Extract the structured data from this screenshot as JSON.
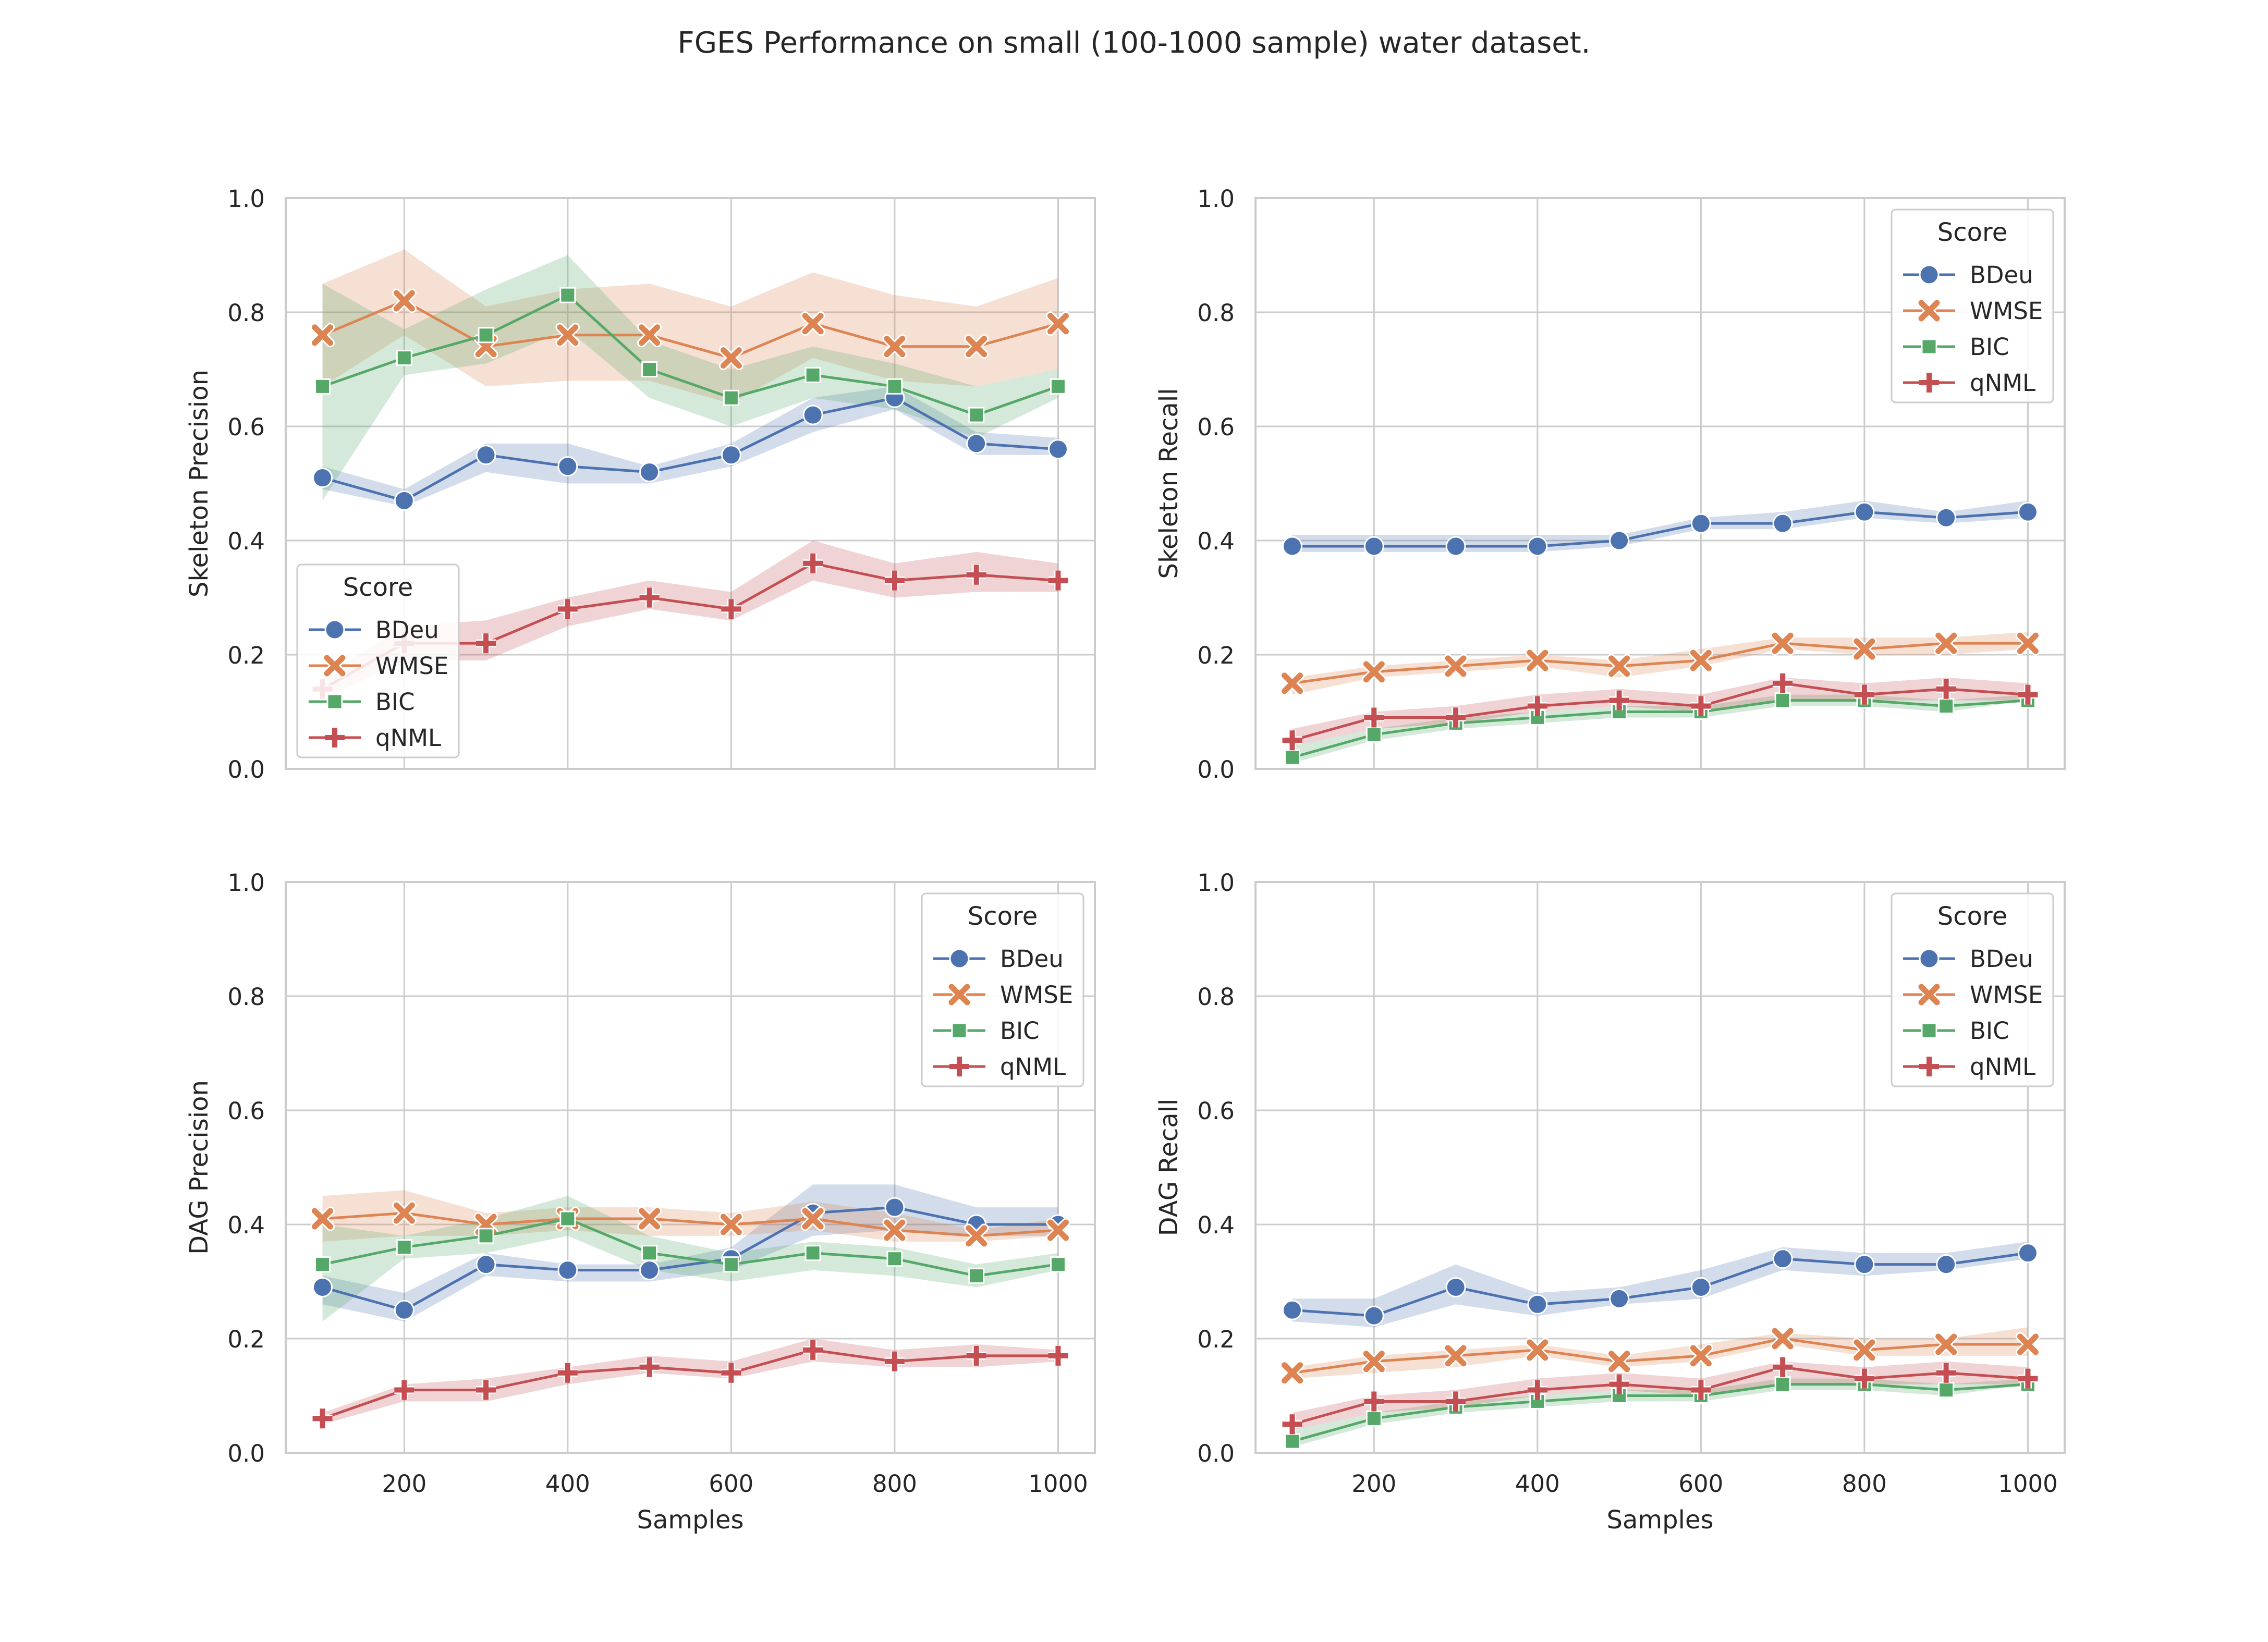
{
  "figure": {
    "title": "FGES Performance on small (100-1000 sample) water dataset."
  },
  "colors": {
    "BDeu": "#4c72b0",
    "WMSE": "#dd8452",
    "BIC": "#55a868",
    "qNML": "#c44e52",
    "grid": "#cccccc",
    "axes_bg": "#ffffff"
  },
  "chart_data": [
    {
      "type": "line",
      "ylabel": "Skeleton Precision",
      "xlabel": "",
      "xlim": [
        55,
        1045
      ],
      "ylim": [
        0.0,
        1.0
      ],
      "x_ticks": [
        200,
        400,
        600,
        800,
        1000
      ],
      "show_x_tick_labels": false,
      "y_ticks": [
        "0.0",
        "0.2",
        "0.4",
        "0.6",
        "0.8",
        "1.0"
      ],
      "grid": true,
      "legend": {
        "title": "Score",
        "placement": "lower-left"
      },
      "x": [
        100,
        200,
        300,
        400,
        500,
        600,
        700,
        800,
        900,
        1000
      ],
      "series": [
        {
          "name": "BDeu",
          "marker": "circle",
          "values": [
            0.51,
            0.47,
            0.55,
            0.53,
            0.52,
            0.55,
            0.62,
            0.65,
            0.57,
            0.56
          ],
          "lower": [
            0.49,
            0.46,
            0.52,
            0.5,
            0.5,
            0.53,
            0.59,
            0.63,
            0.55,
            0.55
          ],
          "upper": [
            0.53,
            0.49,
            0.57,
            0.57,
            0.53,
            0.57,
            0.65,
            0.67,
            0.59,
            0.58
          ]
        },
        {
          "name": "WMSE",
          "marker": "x",
          "values": [
            0.76,
            0.82,
            0.74,
            0.76,
            0.76,
            0.72,
            0.78,
            0.74,
            0.74,
            0.78
          ],
          "lower": [
            0.67,
            0.76,
            0.67,
            0.68,
            0.68,
            0.64,
            0.72,
            0.68,
            0.67,
            0.7
          ],
          "upper": [
            0.85,
            0.91,
            0.81,
            0.84,
            0.85,
            0.81,
            0.87,
            0.83,
            0.81,
            0.86
          ]
        },
        {
          "name": "BIC",
          "marker": "square",
          "values": [
            0.67,
            0.72,
            0.76,
            0.83,
            0.7,
            0.65,
            0.69,
            0.67,
            0.62,
            0.67
          ],
          "lower": [
            0.47,
            0.69,
            0.71,
            0.77,
            0.65,
            0.6,
            0.65,
            0.63,
            0.58,
            0.65
          ],
          "upper": [
            0.85,
            0.77,
            0.84,
            0.9,
            0.75,
            0.7,
            0.74,
            0.71,
            0.67,
            0.7
          ]
        },
        {
          "name": "qNML",
          "marker": "plus",
          "values": [
            0.14,
            0.22,
            0.22,
            0.28,
            0.3,
            0.28,
            0.36,
            0.33,
            0.34,
            0.33
          ],
          "lower": [
            0.12,
            0.19,
            0.19,
            0.25,
            0.28,
            0.26,
            0.33,
            0.3,
            0.31,
            0.31
          ],
          "upper": [
            0.16,
            0.25,
            0.26,
            0.3,
            0.33,
            0.31,
            0.4,
            0.36,
            0.38,
            0.36
          ]
        }
      ]
    },
    {
      "type": "line",
      "ylabel": "Skeleton Recall",
      "xlabel": "",
      "xlim": [
        55,
        1045
      ],
      "ylim": [
        0.0,
        1.0
      ],
      "x_ticks": [
        200,
        400,
        600,
        800,
        1000
      ],
      "show_x_tick_labels": false,
      "y_ticks": [
        "0.0",
        "0.2",
        "0.4",
        "0.6",
        "0.8",
        "1.0"
      ],
      "grid": true,
      "legend": {
        "title": "Score",
        "placement": "upper-right"
      },
      "x": [
        100,
        200,
        300,
        400,
        500,
        600,
        700,
        800,
        900,
        1000
      ],
      "series": [
        {
          "name": "BDeu",
          "marker": "circle",
          "values": [
            0.39,
            0.39,
            0.39,
            0.39,
            0.4,
            0.43,
            0.43,
            0.45,
            0.44,
            0.45
          ],
          "lower": [
            0.38,
            0.38,
            0.38,
            0.38,
            0.39,
            0.42,
            0.42,
            0.44,
            0.43,
            0.44
          ],
          "upper": [
            0.41,
            0.41,
            0.41,
            0.41,
            0.41,
            0.44,
            0.45,
            0.47,
            0.45,
            0.47
          ]
        },
        {
          "name": "WMSE",
          "marker": "x",
          "values": [
            0.15,
            0.17,
            0.18,
            0.19,
            0.18,
            0.19,
            0.22,
            0.21,
            0.22,
            0.22
          ],
          "lower": [
            0.13,
            0.16,
            0.17,
            0.18,
            0.16,
            0.18,
            0.21,
            0.2,
            0.2,
            0.21
          ],
          "upper": [
            0.16,
            0.18,
            0.19,
            0.2,
            0.19,
            0.21,
            0.23,
            0.23,
            0.23,
            0.24
          ]
        },
        {
          "name": "BIC",
          "marker": "square",
          "values": [
            0.02,
            0.06,
            0.08,
            0.09,
            0.1,
            0.1,
            0.12,
            0.12,
            0.11,
            0.12
          ],
          "lower": [
            0.01,
            0.05,
            0.07,
            0.08,
            0.09,
            0.09,
            0.11,
            0.11,
            0.1,
            0.12
          ],
          "upper": [
            0.04,
            0.07,
            0.09,
            0.1,
            0.11,
            0.11,
            0.13,
            0.13,
            0.12,
            0.13
          ]
        },
        {
          "name": "qNML",
          "marker": "plus",
          "values": [
            0.05,
            0.09,
            0.09,
            0.11,
            0.12,
            0.11,
            0.15,
            0.13,
            0.14,
            0.13
          ],
          "lower": [
            0.04,
            0.07,
            0.08,
            0.1,
            0.11,
            0.1,
            0.12,
            0.12,
            0.12,
            0.12
          ],
          "upper": [
            0.07,
            0.1,
            0.11,
            0.13,
            0.14,
            0.13,
            0.16,
            0.15,
            0.16,
            0.15
          ]
        }
      ]
    },
    {
      "type": "line",
      "ylabel": "DAG Precision",
      "xlabel": "Samples",
      "xlim": [
        55,
        1045
      ],
      "ylim": [
        0.0,
        1.0
      ],
      "x_ticks": [
        200,
        400,
        600,
        800,
        1000
      ],
      "show_x_tick_labels": true,
      "y_ticks": [
        "0.0",
        "0.2",
        "0.4",
        "0.6",
        "0.8",
        "1.0"
      ],
      "grid": true,
      "legend": {
        "title": "Score",
        "placement": "upper-right"
      },
      "x": [
        100,
        200,
        300,
        400,
        500,
        600,
        700,
        800,
        900,
        1000
      ],
      "series": [
        {
          "name": "BDeu",
          "marker": "circle",
          "values": [
            0.29,
            0.25,
            0.33,
            0.32,
            0.32,
            0.34,
            0.42,
            0.43,
            0.4,
            0.4
          ],
          "lower": [
            0.26,
            0.23,
            0.31,
            0.3,
            0.3,
            0.32,
            0.38,
            0.39,
            0.38,
            0.38
          ],
          "upper": [
            0.31,
            0.28,
            0.35,
            0.33,
            0.33,
            0.36,
            0.47,
            0.47,
            0.43,
            0.43
          ]
        },
        {
          "name": "WMSE",
          "marker": "x",
          "values": [
            0.41,
            0.42,
            0.4,
            0.41,
            0.41,
            0.4,
            0.41,
            0.39,
            0.38,
            0.39
          ],
          "lower": [
            0.37,
            0.38,
            0.38,
            0.39,
            0.38,
            0.38,
            0.39,
            0.37,
            0.37,
            0.38
          ],
          "upper": [
            0.45,
            0.46,
            0.42,
            0.43,
            0.43,
            0.42,
            0.44,
            0.42,
            0.39,
            0.41
          ]
        },
        {
          "name": "BIC",
          "marker": "square",
          "values": [
            0.33,
            0.36,
            0.38,
            0.41,
            0.35,
            0.33,
            0.35,
            0.34,
            0.31,
            0.33
          ],
          "lower": [
            0.23,
            0.34,
            0.35,
            0.38,
            0.32,
            0.3,
            0.32,
            0.31,
            0.29,
            0.32
          ],
          "upper": [
            0.4,
            0.38,
            0.41,
            0.45,
            0.38,
            0.35,
            0.37,
            0.36,
            0.33,
            0.35
          ]
        },
        {
          "name": "qNML",
          "marker": "plus",
          "values": [
            0.06,
            0.11,
            0.11,
            0.14,
            0.15,
            0.14,
            0.18,
            0.16,
            0.17,
            0.17
          ],
          "lower": [
            0.05,
            0.09,
            0.09,
            0.12,
            0.14,
            0.13,
            0.16,
            0.15,
            0.15,
            0.16
          ],
          "upper": [
            0.07,
            0.12,
            0.13,
            0.15,
            0.17,
            0.16,
            0.2,
            0.18,
            0.19,
            0.18
          ]
        }
      ]
    },
    {
      "type": "line",
      "ylabel": "DAG Recall",
      "xlabel": "Samples",
      "xlim": [
        55,
        1045
      ],
      "ylim": [
        0.0,
        1.0
      ],
      "x_ticks": [
        200,
        400,
        600,
        800,
        1000
      ],
      "show_x_tick_labels": true,
      "y_ticks": [
        "0.0",
        "0.2",
        "0.4",
        "0.6",
        "0.8",
        "1.0"
      ],
      "grid": true,
      "legend": {
        "title": "Score",
        "placement": "upper-right"
      },
      "x": [
        100,
        200,
        300,
        400,
        500,
        600,
        700,
        800,
        900,
        1000
      ],
      "series": [
        {
          "name": "BDeu",
          "marker": "circle",
          "values": [
            0.25,
            0.24,
            0.29,
            0.26,
            0.27,
            0.29,
            0.34,
            0.33,
            0.33,
            0.35
          ],
          "lower": [
            0.23,
            0.22,
            0.26,
            0.24,
            0.26,
            0.27,
            0.32,
            0.31,
            0.32,
            0.34
          ],
          "upper": [
            0.27,
            0.27,
            0.33,
            0.28,
            0.29,
            0.32,
            0.36,
            0.35,
            0.35,
            0.37
          ]
        },
        {
          "name": "WMSE",
          "marker": "x",
          "values": [
            0.14,
            0.16,
            0.17,
            0.18,
            0.16,
            0.17,
            0.2,
            0.18,
            0.19,
            0.19
          ],
          "lower": [
            0.13,
            0.14,
            0.15,
            0.17,
            0.15,
            0.16,
            0.19,
            0.17,
            0.17,
            0.17
          ],
          "upper": [
            0.15,
            0.17,
            0.18,
            0.19,
            0.17,
            0.19,
            0.21,
            0.2,
            0.2,
            0.22
          ]
        },
        {
          "name": "BIC",
          "marker": "square",
          "values": [
            0.02,
            0.06,
            0.08,
            0.09,
            0.1,
            0.1,
            0.12,
            0.12,
            0.11,
            0.12
          ],
          "lower": [
            0.01,
            0.05,
            0.07,
            0.08,
            0.09,
            0.09,
            0.11,
            0.11,
            0.1,
            0.12
          ],
          "upper": [
            0.04,
            0.07,
            0.09,
            0.1,
            0.11,
            0.11,
            0.13,
            0.13,
            0.12,
            0.13
          ]
        },
        {
          "name": "qNML",
          "marker": "plus",
          "values": [
            0.05,
            0.09,
            0.09,
            0.11,
            0.12,
            0.11,
            0.15,
            0.13,
            0.14,
            0.13
          ],
          "lower": [
            0.04,
            0.07,
            0.08,
            0.1,
            0.11,
            0.1,
            0.12,
            0.12,
            0.12,
            0.12
          ],
          "upper": [
            0.07,
            0.1,
            0.11,
            0.13,
            0.14,
            0.13,
            0.16,
            0.15,
            0.16,
            0.15
          ]
        }
      ]
    }
  ]
}
